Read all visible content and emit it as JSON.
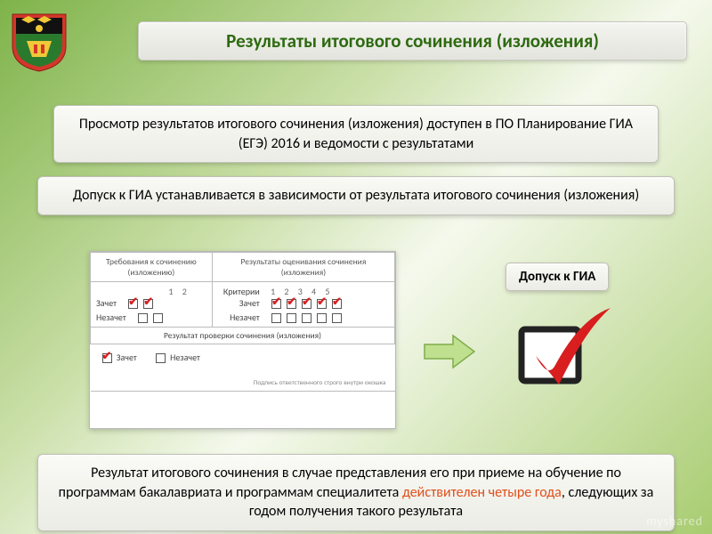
{
  "title": "Результаты итогового сочинения (изложения)",
  "box1": "Просмотр результатов итогового сочинения (изложения) доступен в ПО Планирование ГИА (ЕГЭ) 2016 и ведомости с результатами",
  "box2": "Допуск к ГИА устанавливается в зависимости от результата итогового сочинения (изложения)",
  "pill_gia": "Допуск к ГИА",
  "box3_line1": "Результат итогового сочинения в случае представления его при приеме на обучение по программам бакалавриата и программам специалитета",
  "box3_accent": "действителен четыре года",
  "box3_line2": ", следующих за годом получения такого результата",
  "form": {
    "hdr_left": "Требования к\nсочинению (изложению)",
    "hdr_right": "Результаты оценивания\nсочинения (изложения)",
    "nums12": "1   2",
    "krit": "Критерии",
    "nums15": "1  2  3  4  5",
    "zachet": "Зачет",
    "nezachet": "Незачет",
    "section": "Результат проверки сочинения (изложения)",
    "sig": "Подпись ответственного строго внутри окошка"
  },
  "title_color": "#2d6a0f",
  "accent_color": "#e0501b",
  "watermark": "myshared"
}
